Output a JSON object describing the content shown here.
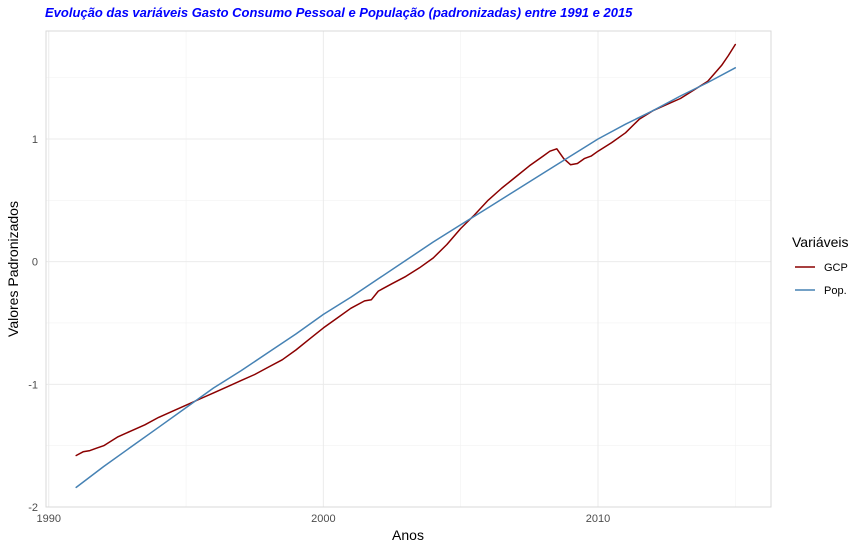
{
  "chart_data": {
    "type": "line",
    "title": "Evolução das variáveis Gasto Consumo Pessoal e População (padronizadas) entre 1991 e 2015",
    "title_color": "#0000ff",
    "xlabel": "Anos",
    "ylabel": "Valores Padronizados",
    "xlim": [
      1989.9,
      2016.3
    ],
    "ylim": [
      -2.0,
      1.88
    ],
    "x_ticks": [
      1990,
      2000,
      2010
    ],
    "x_tick_labels": [
      "1990",
      "2000",
      "2010"
    ],
    "y_ticks": [
      -2,
      -1,
      0,
      1
    ],
    "y_tick_labels": [
      "-2",
      "-1",
      "0",
      "1"
    ],
    "grid": true,
    "legend": {
      "title": "Variáveis",
      "placement": "right"
    },
    "series": [
      {
        "name": "GCP",
        "color": "#8b0000",
        "x": [
          1991.0,
          1991.25,
          1991.5,
          1991.75,
          1992.0,
          1992.5,
          1993.0,
          1993.5,
          1994.0,
          1994.5,
          1995.0,
          1995.5,
          1996.0,
          1996.5,
          1997.0,
          1997.5,
          1998.0,
          1998.5,
          1999.0,
          1999.5,
          2000.0,
          2000.5,
          2001.0,
          2001.5,
          2001.75,
          2002.0,
          2002.5,
          2003.0,
          2003.5,
          2004.0,
          2004.5,
          2005.0,
          2005.5,
          2006.0,
          2006.5,
          2007.0,
          2007.5,
          2008.0,
          2008.25,
          2008.5,
          2008.75,
          2009.0,
          2009.25,
          2009.5,
          2009.75,
          2010.0,
          2010.5,
          2011.0,
          2011.5,
          2012.0,
          2012.5,
          2013.0,
          2013.5,
          2014.0,
          2014.5,
          2014.75,
          2015.0
        ],
        "values": [
          -1.58,
          -1.55,
          -1.54,
          -1.52,
          -1.5,
          -1.43,
          -1.38,
          -1.33,
          -1.27,
          -1.22,
          -1.17,
          -1.12,
          -1.07,
          -1.02,
          -0.97,
          -0.92,
          -0.86,
          -0.8,
          -0.72,
          -0.63,
          -0.54,
          -0.46,
          -0.38,
          -0.32,
          -0.31,
          -0.24,
          -0.18,
          -0.12,
          -0.05,
          0.03,
          0.14,
          0.27,
          0.38,
          0.5,
          0.6,
          0.69,
          0.78,
          0.86,
          0.9,
          0.92,
          0.84,
          0.79,
          0.8,
          0.84,
          0.86,
          0.9,
          0.97,
          1.05,
          1.16,
          1.23,
          1.28,
          1.33,
          1.4,
          1.47,
          1.6,
          1.68,
          1.77
        ]
      },
      {
        "name": "Pop.",
        "color": "#4682b4",
        "x": [
          1991.0,
          1992.0,
          1993.0,
          1994.0,
          1995.0,
          1996.0,
          1997.0,
          1998.0,
          1999.0,
          2000.0,
          2001.0,
          2002.0,
          2003.0,
          2004.0,
          2005.0,
          2006.0,
          2007.0,
          2008.0,
          2009.0,
          2010.0,
          2011.0,
          2012.0,
          2013.0,
          2014.0,
          2015.0
        ],
        "values": [
          -1.84,
          -1.67,
          -1.51,
          -1.35,
          -1.19,
          -1.03,
          -0.89,
          -0.74,
          -0.59,
          -0.43,
          -0.29,
          -0.14,
          0.01,
          0.16,
          0.3,
          0.44,
          0.58,
          0.72,
          0.86,
          1.0,
          1.12,
          1.23,
          1.35,
          1.46,
          1.58
        ]
      }
    ]
  }
}
